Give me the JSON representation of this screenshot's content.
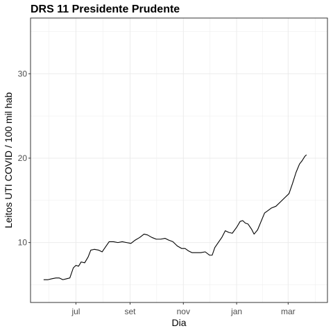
{
  "chart_data": {
    "type": "line",
    "title": "DRS 11 Presidente Prudente",
    "xlabel": "Dia",
    "ylabel": "Leitos UTI COVID / 100 mil hab",
    "x_axis": {
      "type": "date",
      "range": [
        "2020-05-10",
        "2021-04-15"
      ],
      "ticks": [
        {
          "date": "2020-07-01",
          "label": "jul"
        },
        {
          "date": "2020-09-01",
          "label": "set"
        },
        {
          "date": "2020-11-01",
          "label": "nov"
        },
        {
          "date": "2021-01-01",
          "label": "jan"
        },
        {
          "date": "2021-03-01",
          "label": "mar"
        }
      ]
    },
    "y_axis": {
      "range": [
        2.9,
        36.6
      ],
      "ticks": [
        10,
        20,
        30
      ]
    },
    "grid": true,
    "series": [
      {
        "color": "#000000",
        "points": [
          [
            "2020-05-25",
            5.6
          ],
          [
            "2020-05-30",
            5.6
          ],
          [
            "2020-06-03",
            5.7
          ],
          [
            "2020-06-08",
            5.8
          ],
          [
            "2020-06-12",
            5.8
          ],
          [
            "2020-06-16",
            5.6
          ],
          [
            "2020-06-20",
            5.7
          ],
          [
            "2020-06-24",
            5.8
          ],
          [
            "2020-06-28",
            7.0
          ],
          [
            "2020-07-01",
            7.3
          ],
          [
            "2020-07-04",
            7.2
          ],
          [
            "2020-07-07",
            7.7
          ],
          [
            "2020-07-11",
            7.6
          ],
          [
            "2020-07-15",
            8.3
          ],
          [
            "2020-07-18",
            9.1
          ],
          [
            "2020-07-22",
            9.2
          ],
          [
            "2020-07-27",
            9.1
          ],
          [
            "2020-07-31",
            8.9
          ],
          [
            "2020-08-04",
            9.5
          ],
          [
            "2020-08-08",
            10.1
          ],
          [
            "2020-08-13",
            10.1
          ],
          [
            "2020-08-18",
            10.0
          ],
          [
            "2020-08-23",
            10.1
          ],
          [
            "2020-08-28",
            10.0
          ],
          [
            "2020-09-02",
            9.9
          ],
          [
            "2020-09-07",
            10.3
          ],
          [
            "2020-09-12",
            10.6
          ],
          [
            "2020-09-17",
            11.0
          ],
          [
            "2020-09-21",
            10.9
          ],
          [
            "2020-09-26",
            10.6
          ],
          [
            "2020-10-01",
            10.4
          ],
          [
            "2020-10-06",
            10.4
          ],
          [
            "2020-10-11",
            10.5
          ],
          [
            "2020-10-15",
            10.3
          ],
          [
            "2020-10-20",
            10.1
          ],
          [
            "2020-10-25",
            9.6
          ],
          [
            "2020-10-30",
            9.3
          ],
          [
            "2020-11-03",
            9.3
          ],
          [
            "2020-11-07",
            9.0
          ],
          [
            "2020-11-11",
            8.8
          ],
          [
            "2020-11-16",
            8.8
          ],
          [
            "2020-11-21",
            8.8
          ],
          [
            "2020-11-26",
            8.9
          ],
          [
            "2020-12-01",
            8.5
          ],
          [
            "2020-12-04",
            8.5
          ],
          [
            "2020-12-07",
            9.4
          ],
          [
            "2020-12-11",
            10.0
          ],
          [
            "2020-12-15",
            10.6
          ],
          [
            "2020-12-19",
            11.4
          ],
          [
            "2020-12-23",
            11.2
          ],
          [
            "2020-12-27",
            11.1
          ],
          [
            "2021-01-01",
            11.8
          ],
          [
            "2021-01-05",
            12.5
          ],
          [
            "2021-01-08",
            12.6
          ],
          [
            "2021-01-11",
            12.3
          ],
          [
            "2021-01-14",
            12.2
          ],
          [
            "2021-01-18",
            11.6
          ],
          [
            "2021-01-21",
            11.0
          ],
          [
            "2021-01-25",
            11.5
          ],
          [
            "2021-01-29",
            12.5
          ],
          [
            "2021-02-02",
            13.5
          ],
          [
            "2021-02-06",
            13.8
          ],
          [
            "2021-02-10",
            14.1
          ],
          [
            "2021-02-15",
            14.3
          ],
          [
            "2021-02-20",
            14.8
          ],
          [
            "2021-02-25",
            15.3
          ],
          [
            "2021-03-02",
            15.8
          ],
          [
            "2021-03-06",
            17.0
          ],
          [
            "2021-03-10",
            18.3
          ],
          [
            "2021-03-14",
            19.3
          ],
          [
            "2021-03-17",
            19.7
          ],
          [
            "2021-03-20",
            20.2
          ],
          [
            "2021-03-22",
            20.4
          ]
        ]
      }
    ]
  }
}
